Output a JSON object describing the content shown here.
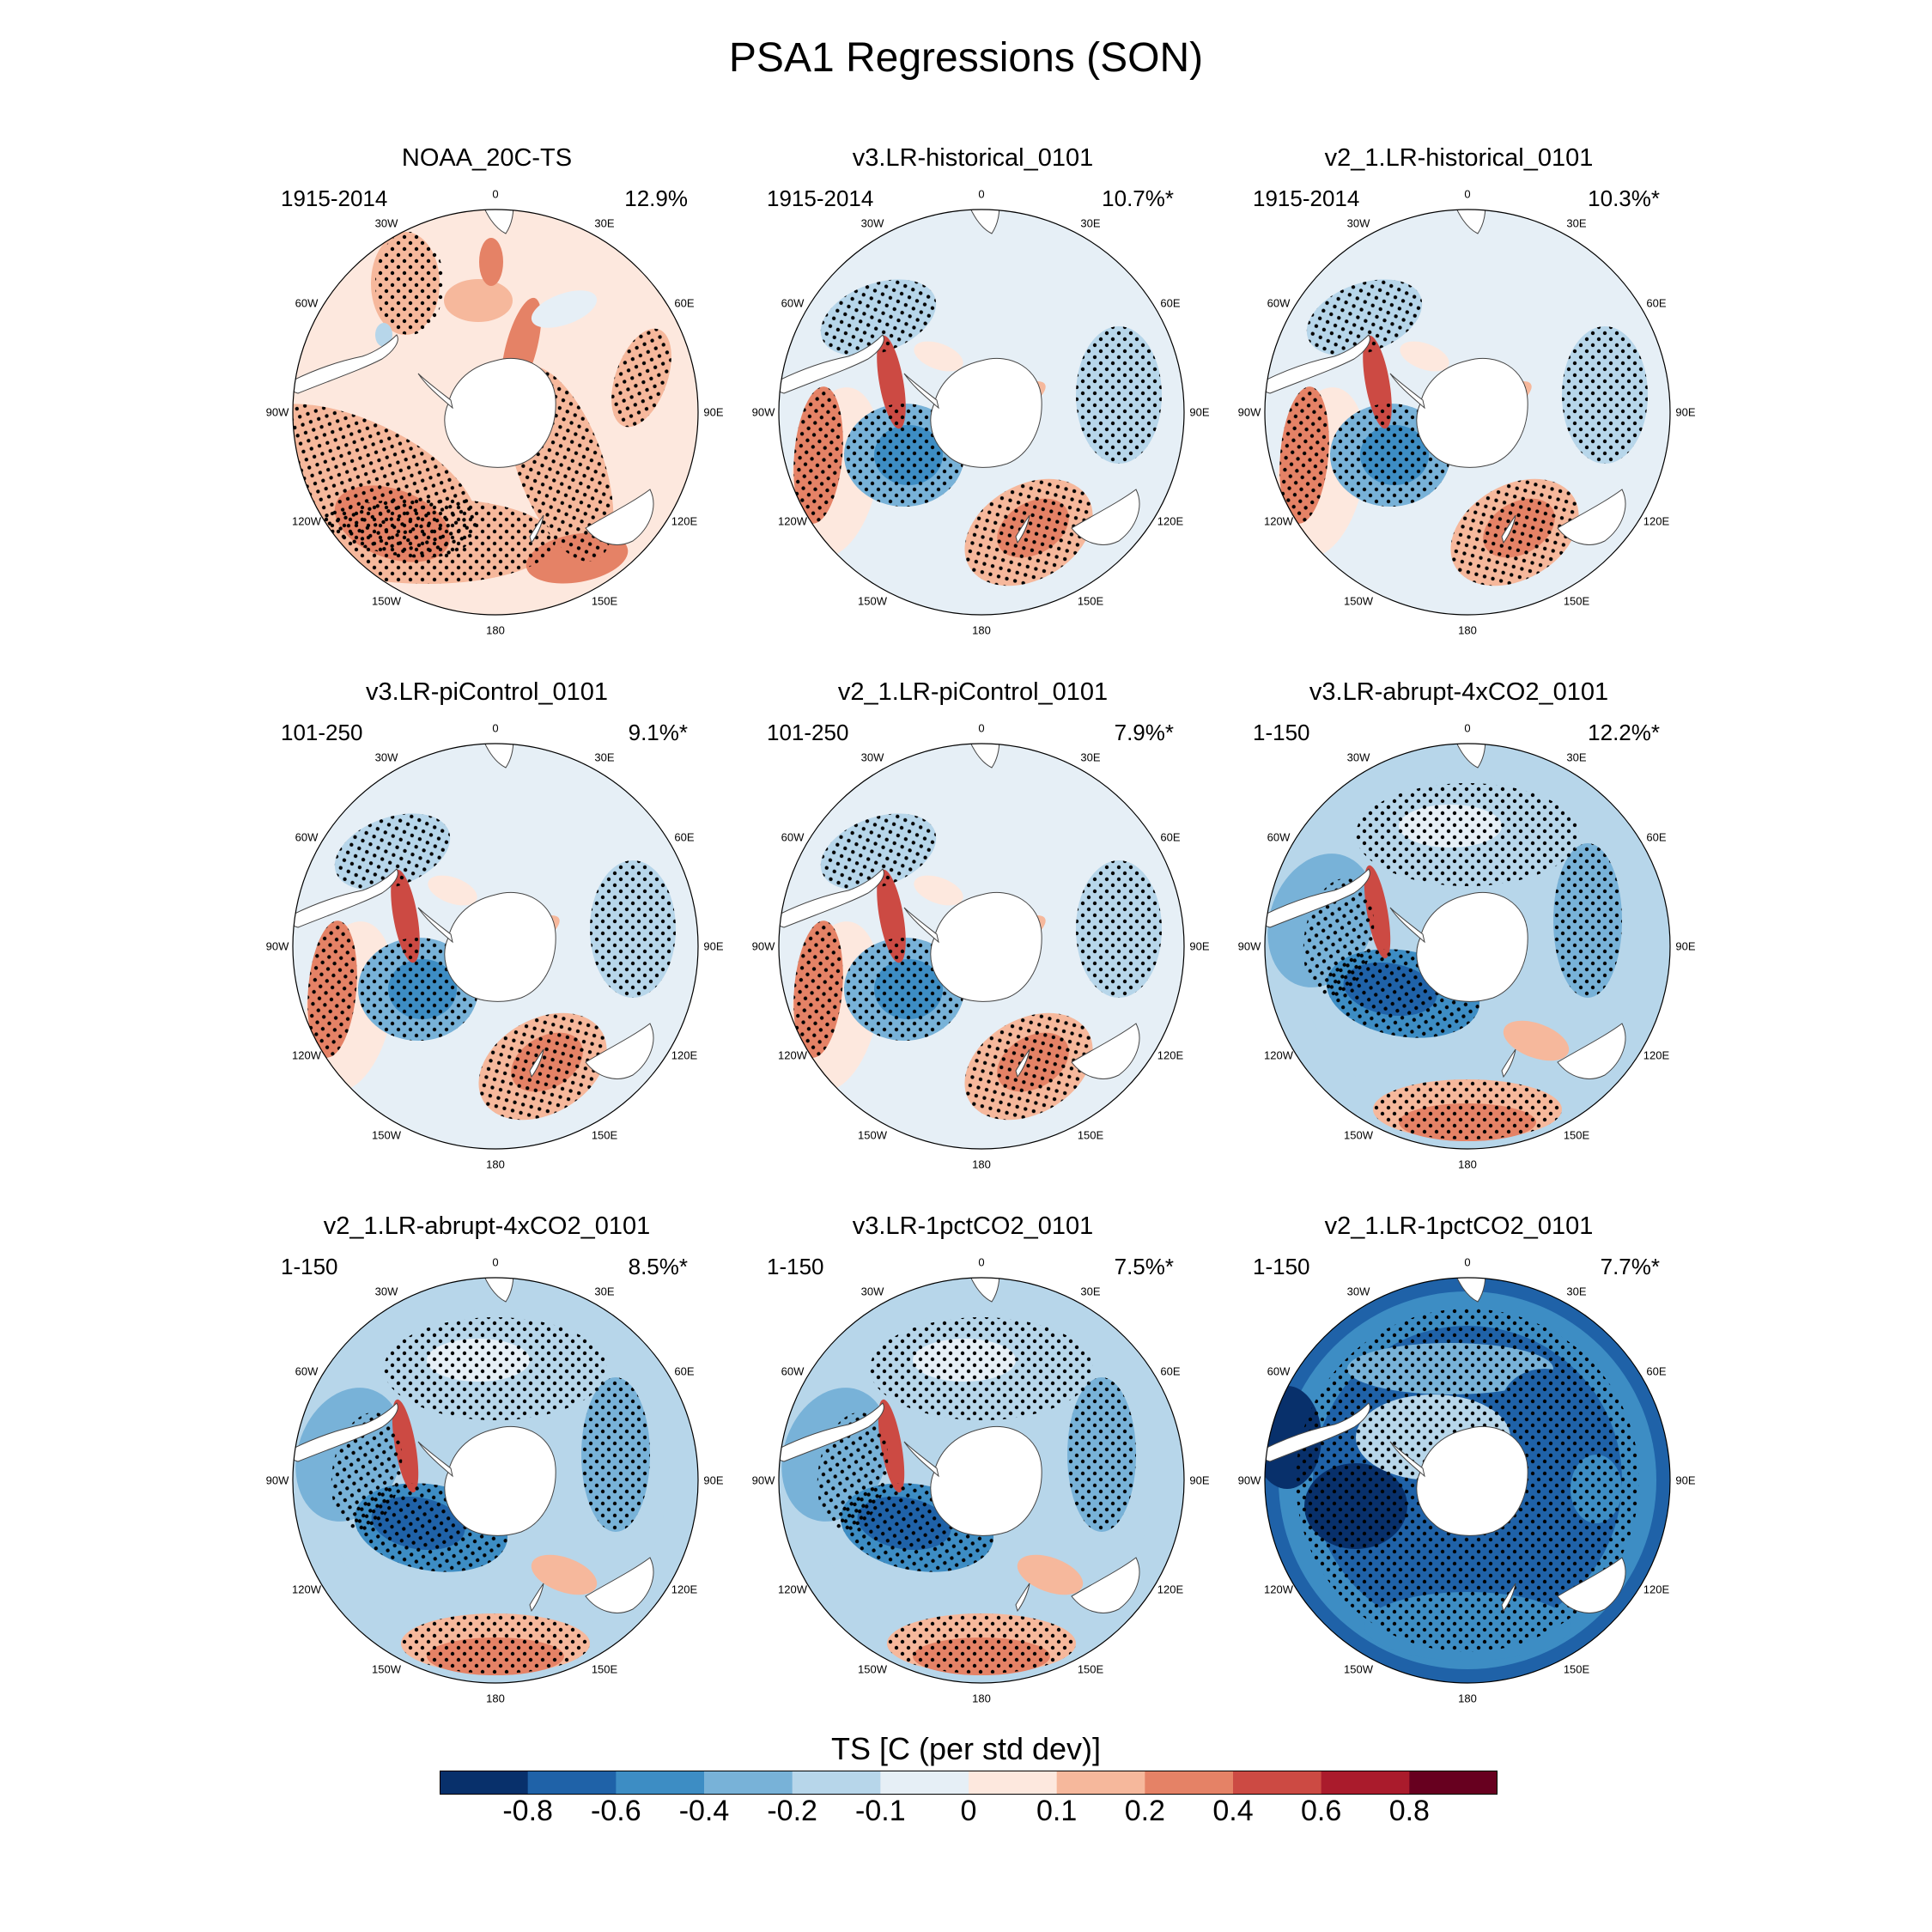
{
  "title": "PSA1 Regressions (SON)",
  "colorbar": {
    "title": "TS [C (per std dev)]",
    "labels": [
      "-0.8",
      "-0.6",
      "-0.4",
      "-0.2",
      "-0.1",
      "0",
      "0.1",
      "0.2",
      "0.4",
      "0.6",
      "0.8"
    ],
    "colors": [
      "#08306b",
      "#1f62a8",
      "#3d8dc4",
      "#78b2d8",
      "#b7d6ea",
      "#e6eff6",
      "#fde8de",
      "#f6b89c",
      "#e58266",
      "#cc4a43",
      "#aa1b2c",
      "#67001f"
    ]
  },
  "map_labels": {
    "lon_0": "0",
    "lon_30e": "30E",
    "lon_60e": "60E",
    "lon_90e": "90E",
    "lon_120e": "120E",
    "lon_150e": "150E",
    "lon_180": "180",
    "lon_150w": "150W",
    "lon_120w": "120W",
    "lon_90w": "90W",
    "lon_60w": "60W",
    "lon_30w": "30W"
  },
  "panels": [
    {
      "title": "NOAA_20C-TS",
      "years": "1915-2014",
      "pct": "12.9%",
      "pattern": "obs"
    },
    {
      "title": "v3.LR-historical_0101",
      "years": "1915-2014",
      "pct": "10.7%*",
      "pattern": "psa"
    },
    {
      "title": "v2_1.LR-historical_0101",
      "years": "1915-2014",
      "pct": "10.3%*",
      "pattern": "psa"
    },
    {
      "title": "v3.LR-piControl_0101",
      "years": "101-250",
      "pct": "9.1%*",
      "pattern": "psa"
    },
    {
      "title": "v2_1.LR-piControl_0101",
      "years": "101-250",
      "pct": "7.9%*",
      "pattern": "psa"
    },
    {
      "title": "v3.LR-abrupt-4xCO2_0101",
      "years": "1-150",
      "pct": "12.2%*",
      "pattern": "cool"
    },
    {
      "title": "v2_1.LR-abrupt-4xCO2_0101",
      "years": "1-150",
      "pct": "8.5%*",
      "pattern": "cool"
    },
    {
      "title": "v3.LR-1pctCO2_0101",
      "years": "1-150",
      "pct": "7.5%*",
      "pattern": "cool"
    },
    {
      "title": "v2_1.LR-1pctCO2_0101",
      "years": "1-150",
      "pct": "7.7%*",
      "pattern": "deep"
    }
  ]
}
